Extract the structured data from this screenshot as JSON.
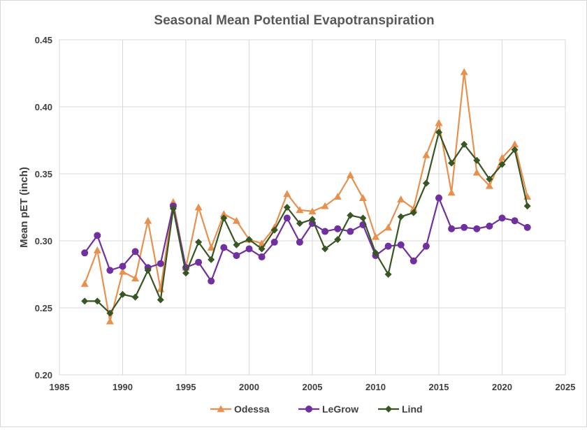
{
  "chart_data": {
    "type": "line",
    "title": "Seasonal Mean Potential Evapotranspiration",
    "xlabel": "",
    "ylabel": "Mean pET (inch)",
    "xlim": [
      1985,
      2025
    ],
    "ylim": [
      0.2,
      0.45
    ],
    "x_ticks": [
      "1985",
      "1990",
      "1995",
      "2000",
      "2005",
      "2010",
      "2015",
      "2020",
      "2025"
    ],
    "y_ticks": [
      "0.20",
      "0.25",
      "0.30",
      "0.35",
      "0.40",
      "0.45"
    ],
    "grid": true,
    "legend_position": "bottom",
    "x": [
      1987,
      1988,
      1989,
      1990,
      1991,
      1992,
      1993,
      1994,
      1995,
      1996,
      1997,
      1998,
      1999,
      2000,
      2001,
      2002,
      2003,
      2004,
      2005,
      2006,
      2007,
      2008,
      2009,
      2010,
      2011,
      2012,
      2013,
      2014,
      2015,
      2016,
      2017,
      2018,
      2019,
      2020,
      2021,
      2022
    ],
    "series": [
      {
        "name": "Odessa",
        "color": "#e8914f",
        "marker": "triangle",
        "values": [
          0.268,
          0.293,
          0.24,
          0.277,
          0.272,
          0.315,
          0.264,
          0.329,
          0.28,
          0.325,
          0.295,
          0.32,
          0.315,
          0.301,
          0.298,
          0.31,
          0.335,
          0.323,
          0.322,
          0.326,
          0.333,
          0.349,
          0.332,
          0.303,
          0.31,
          0.331,
          0.324,
          0.364,
          0.388,
          0.336,
          0.426,
          0.351,
          0.341,
          0.362,
          0.372,
          0.333
        ]
      },
      {
        "name": "LeGrow",
        "color": "#7030a0",
        "marker": "circle",
        "values": [
          0.291,
          0.304,
          0.278,
          0.281,
          0.292,
          0.28,
          0.283,
          0.326,
          0.28,
          0.284,
          0.27,
          0.295,
          0.289,
          0.294,
          0.288,
          0.299,
          0.317,
          0.299,
          0.313,
          0.307,
          0.309,
          0.307,
          0.312,
          0.289,
          0.296,
          0.297,
          0.285,
          0.296,
          0.332,
          0.309,
          0.31,
          0.309,
          0.311,
          0.317,
          0.315,
          0.31
        ]
      },
      {
        "name": "Lind",
        "color": "#375623",
        "marker": "diamond",
        "values": [
          0.255,
          0.255,
          0.246,
          0.26,
          0.258,
          0.278,
          0.256,
          0.324,
          0.276,
          0.299,
          0.286,
          0.317,
          0.297,
          0.301,
          0.294,
          0.308,
          0.325,
          0.313,
          0.316,
          0.294,
          0.301,
          0.319,
          0.317,
          0.291,
          0.275,
          0.318,
          0.321,
          0.343,
          0.381,
          0.358,
          0.372,
          0.36,
          0.346,
          0.357,
          0.368,
          0.326
        ]
      }
    ]
  }
}
